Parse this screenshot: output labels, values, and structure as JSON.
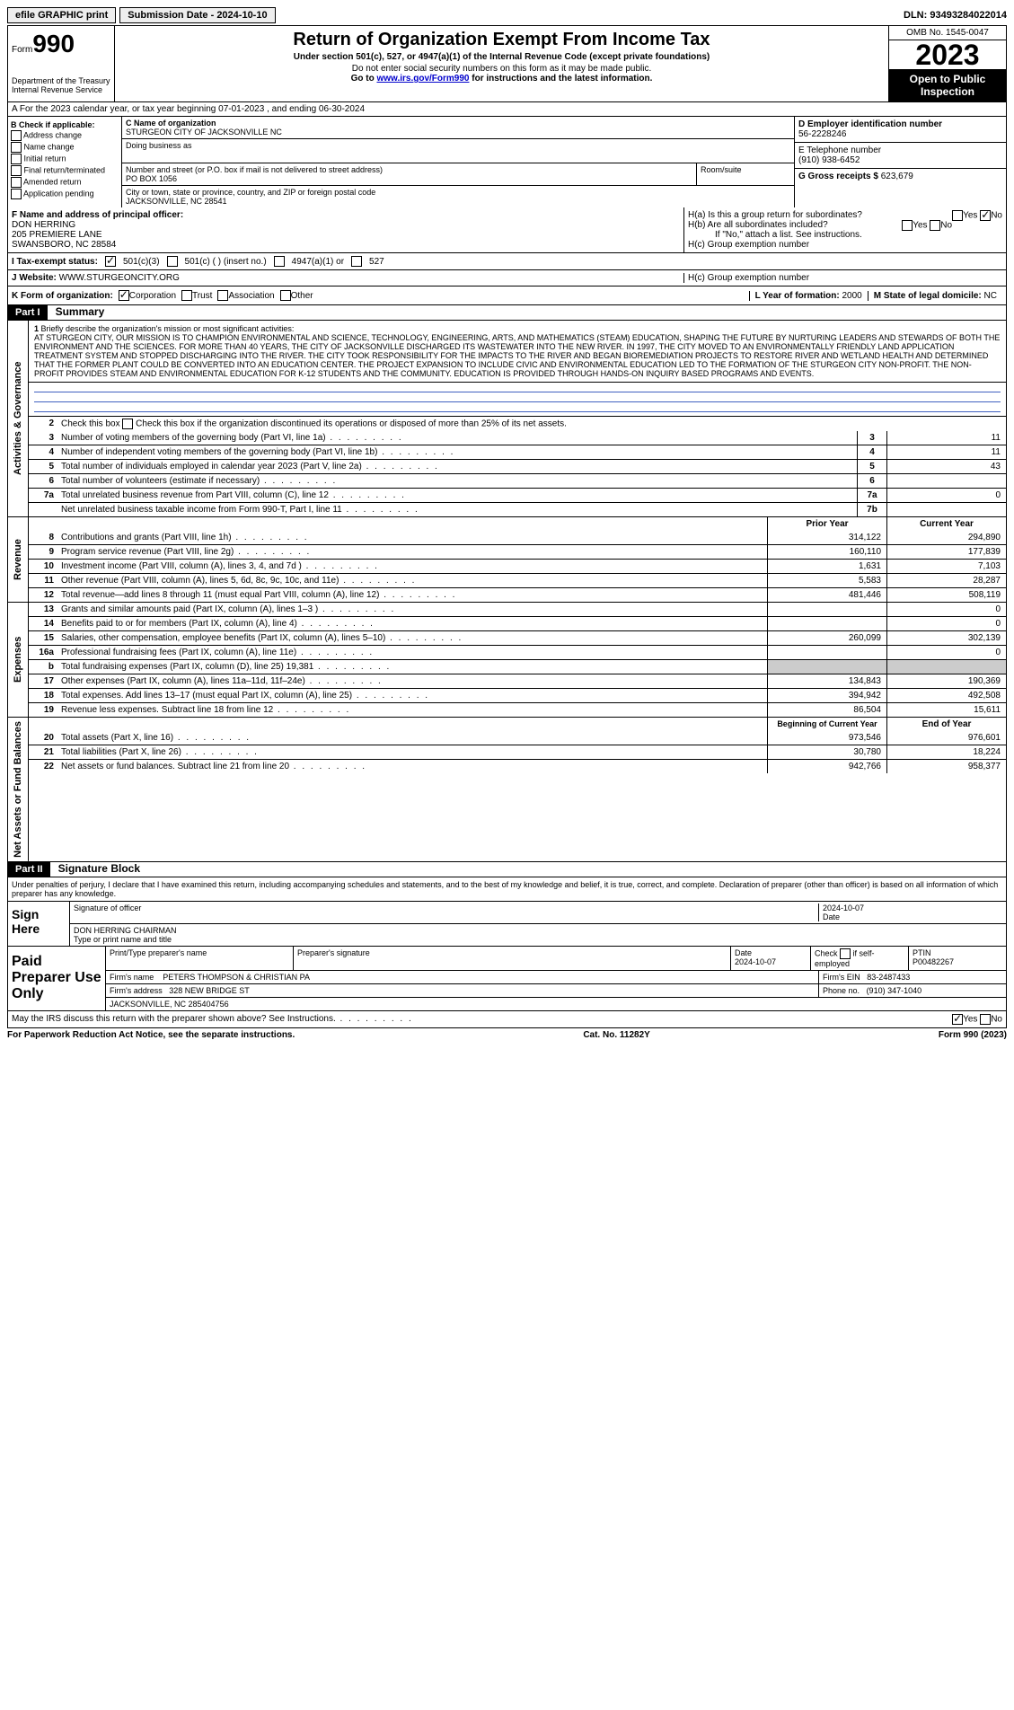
{
  "topbar": {
    "efile": "efile GRAPHIC print",
    "submission_label": "Submission Date - 2024-10-10",
    "dln": "DLN: 93493284022014"
  },
  "header": {
    "form_prefix": "Form",
    "form_number": "990",
    "dept": "Department of the Treasury Internal Revenue Service",
    "title": "Return of Organization Exempt From Income Tax",
    "subtitle": "Under section 501(c), 527, or 4947(a)(1) of the Internal Revenue Code (except private foundations)",
    "note1": "Do not enter social security numbers on this form as it may be made public.",
    "note2_pre": "Go to ",
    "note2_link": "www.irs.gov/Form990",
    "note2_post": " for instructions and the latest information.",
    "omb": "OMB No. 1545-0047",
    "year": "2023",
    "open": "Open to Public Inspection"
  },
  "row_a": "A For the 2023 calendar year, or tax year beginning 07-01-2023   , and ending 06-30-2024",
  "col_b": {
    "title": "B Check if applicable:",
    "items": [
      "Address change",
      "Name change",
      "Initial return",
      "Final return/terminated",
      "Amended return",
      "Application pending"
    ]
  },
  "col_c": {
    "c_label": "C Name of organization",
    "org_name": "STURGEON CITY OF JACKSONVILLE NC",
    "dba_label": "Doing business as",
    "addr_label": "Number and street (or P.O. box if mail is not delivered to street address)",
    "addr": "PO BOX 1056",
    "room_label": "Room/suite",
    "city_label": "City or town, state or province, country, and ZIP or foreign postal code",
    "city": "JACKSONVILLE, NC  28541"
  },
  "col_de": {
    "d_label": "D Employer identification number",
    "ein": "56-2228246",
    "e_label": "E Telephone number",
    "phone": "(910) 938-6452",
    "g_label": "G Gross receipts $",
    "gross": "623,679"
  },
  "col_f": {
    "label": "F  Name and address of principal officer:",
    "name": "DON HERRING",
    "addr1": "205 PREMIERE LANE",
    "addr2": "SWANSBORO, NC  28584"
  },
  "col_h": {
    "ha": "H(a)  Is this a group return for subordinates?",
    "hb": "H(b)  Are all subordinates included?",
    "hb_note": "If \"No,\" attach a list. See instructions.",
    "hc": "H(c)  Group exemption number",
    "yes": "Yes",
    "no": "No"
  },
  "tax_status": {
    "label": "I  Tax-exempt status:",
    "opt1": "501(c)(3)",
    "opt2": "501(c) (  ) (insert no.)",
    "opt3": "4947(a)(1) or",
    "opt4": "527"
  },
  "website": {
    "label": "J  Website:",
    "value": "WWW.STURGEONCITY.ORG"
  },
  "row_k": {
    "k_label": "K Form of organization:",
    "corp": "Corporation",
    "trust": "Trust",
    "assoc": "Association",
    "other": "Other",
    "l_label": "L Year of formation:",
    "l_val": "2000",
    "m_label": "M State of legal domicile:",
    "m_val": "NC"
  },
  "part1": {
    "header": "Part I",
    "title": "Summary",
    "side_ag": "Activities & Governance",
    "side_rev": "Revenue",
    "side_exp": "Expenses",
    "side_nab": "Net Assets or Fund Balances",
    "line1_label": "Briefly describe the organization's mission or most significant activities:",
    "mission": "AT STURGEON CITY, OUR MISSION IS TO CHAMPION ENVIRONMENTAL AND SCIENCE, TECHNOLOGY, ENGINEERING, ARTS, AND MATHEMATICS (STEAM) EDUCATION, SHAPING THE FUTURE BY NURTURING LEADERS AND STEWARDS OF BOTH THE ENVIRONMENT AND THE SCIENCES. FOR MORE THAN 40 YEARS, THE CITY OF JACKSONVILLE DISCHARGED ITS WASTEWATER INTO THE NEW RIVER. IN 1997, THE CITY MOVED TO AN ENVIRONMENTALLY FRIENDLY LAND APPLICATION TREATMENT SYSTEM AND STOPPED DISCHARGING INTO THE RIVER. THE CITY TOOK RESPONSIBILITY FOR THE IMPACTS TO THE RIVER AND BEGAN BIOREMEDIATION PROJECTS TO RESTORE RIVER AND WETLAND HEALTH AND DETERMINED THAT THE FORMER PLANT COULD BE CONVERTED INTO AN EDUCATION CENTER. THE PROJECT EXPANSION TO INCLUDE CIVIC AND ENVIRONMENTAL EDUCATION LED TO THE FORMATION OF THE STURGEON CITY NON-PROFIT. THE NON-PROFIT PROVIDES STEAM AND ENVIRONMENTAL EDUCATION FOR K-12 STUDENTS AND THE COMMUNITY. EDUCATION IS PROVIDED THROUGH HANDS-ON INQUIRY BASED PROGRAMS AND EVENTS.",
    "line2": "Check this box    if the organization discontinued its operations or disposed of more than 25% of its net assets.",
    "lines_ag": [
      {
        "n": "3",
        "t": "Number of voting members of the governing body (Part VI, line 1a)",
        "box": "3",
        "v": "11"
      },
      {
        "n": "4",
        "t": "Number of independent voting members of the governing body (Part VI, line 1b)",
        "box": "4",
        "v": "11"
      },
      {
        "n": "5",
        "t": "Total number of individuals employed in calendar year 2023 (Part V, line 2a)",
        "box": "5",
        "v": "43"
      },
      {
        "n": "6",
        "t": "Total number of volunteers (estimate if necessary)",
        "box": "6",
        "v": ""
      },
      {
        "n": "7a",
        "t": "Total unrelated business revenue from Part VIII, column (C), line 12",
        "box": "7a",
        "v": "0"
      },
      {
        "n": "",
        "t": "Net unrelated business taxable income from Form 990-T, Part I, line 11",
        "box": "7b",
        "v": ""
      }
    ],
    "hdr_prior": "Prior Year",
    "hdr_current": "Current Year",
    "lines_rev": [
      {
        "n": "8",
        "t": "Contributions and grants (Part VIII, line 1h)",
        "p": "314,122",
        "c": "294,890"
      },
      {
        "n": "9",
        "t": "Program service revenue (Part VIII, line 2g)",
        "p": "160,110",
        "c": "177,839"
      },
      {
        "n": "10",
        "t": "Investment income (Part VIII, column (A), lines 3, 4, and 7d )",
        "p": "1,631",
        "c": "7,103"
      },
      {
        "n": "11",
        "t": "Other revenue (Part VIII, column (A), lines 5, 6d, 8c, 9c, 10c, and 11e)",
        "p": "5,583",
        "c": "28,287"
      },
      {
        "n": "12",
        "t": "Total revenue—add lines 8 through 11 (must equal Part VIII, column (A), line 12)",
        "p": "481,446",
        "c": "508,119"
      }
    ],
    "lines_exp": [
      {
        "n": "13",
        "t": "Grants and similar amounts paid (Part IX, column (A), lines 1–3 )",
        "p": "",
        "c": "0"
      },
      {
        "n": "14",
        "t": "Benefits paid to or for members (Part IX, column (A), line 4)",
        "p": "",
        "c": "0"
      },
      {
        "n": "15",
        "t": "Salaries, other compensation, employee benefits (Part IX, column (A), lines 5–10)",
        "p": "260,099",
        "c": "302,139"
      },
      {
        "n": "16a",
        "t": "Professional fundraising fees (Part IX, column (A), line 11e)",
        "p": "",
        "c": "0"
      },
      {
        "n": "b",
        "t": "Total fundraising expenses (Part IX, column (D), line 25) 19,381",
        "p": "shaded",
        "c": "shaded"
      },
      {
        "n": "17",
        "t": "Other expenses (Part IX, column (A), lines 11a–11d, 11f–24e)",
        "p": "134,843",
        "c": "190,369"
      },
      {
        "n": "18",
        "t": "Total expenses. Add lines 13–17 (must equal Part IX, column (A), line 25)",
        "p": "394,942",
        "c": "492,508"
      },
      {
        "n": "19",
        "t": "Revenue less expenses. Subtract line 18 from line 12",
        "p": "86,504",
        "c": "15,611"
      }
    ],
    "hdr_begin": "Beginning of Current Year",
    "hdr_end": "End of Year",
    "lines_nab": [
      {
        "n": "20",
        "t": "Total assets (Part X, line 16)",
        "p": "973,546",
        "c": "976,601"
      },
      {
        "n": "21",
        "t": "Total liabilities (Part X, line 26)",
        "p": "30,780",
        "c": "18,224"
      },
      {
        "n": "22",
        "t": "Net assets or fund balances. Subtract line 21 from line 20",
        "p": "942,766",
        "c": "958,377"
      }
    ]
  },
  "part2": {
    "header": "Part II",
    "title": "Signature Block",
    "penalty": "Under penalties of perjury, I declare that I have examined this return, including accompanying schedules and statements, and to the best of my knowledge and belief, it is true, correct, and complete. Declaration of preparer (other than officer) is based on all information of which preparer has any knowledge.",
    "sign_here": "Sign Here",
    "sig_officer": "Signature of officer",
    "sig_date": "2024-10-07",
    "officer_name": "DON HERRING CHAIRMAN",
    "type_name": "Type or print name and title",
    "date_label": "Date",
    "paid_prep": "Paid Preparer Use Only",
    "prep_name_label": "Print/Type preparer's name",
    "prep_sig_label": "Preparer's signature",
    "prep_date": "2024-10-07",
    "check_self": "Check    if self-employed",
    "ptin_label": "PTIN",
    "ptin": "P00482267",
    "firm_name_label": "Firm's name",
    "firm_name": "PETERS THOMPSON & CHRISTIAN PA",
    "firm_ein_label": "Firm's EIN",
    "firm_ein": "83-2487433",
    "firm_addr_label": "Firm's address",
    "firm_addr": "328 NEW BRIDGE ST",
    "firm_city": "JACKSONVILLE, NC  285404756",
    "phone_label": "Phone no.",
    "phone": "(910) 347-1040",
    "discuss": "May the IRS discuss this return with the preparer shown above? See Instructions.",
    "yes": "Yes",
    "no": "No"
  },
  "footer": {
    "left": "For Paperwork Reduction Act Notice, see the separate instructions.",
    "mid": "Cat. No. 11282Y",
    "right": "Form 990 (2023)"
  }
}
